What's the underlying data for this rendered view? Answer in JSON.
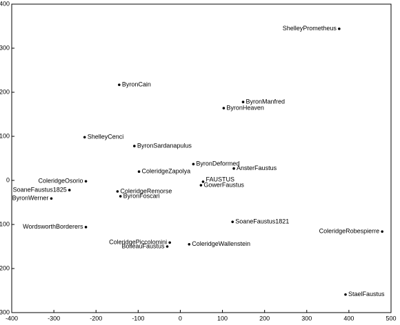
{
  "chart_data": {
    "type": "scatter",
    "color": "#000000",
    "labels": [
      "ShelleyPrometheus",
      "ByronCain",
      "ByronManfred",
      "ByronHeaven",
      "ShelleyCenci",
      "ByronSardanapulus",
      "ByronDeformed",
      "AnsterFaustus",
      "ColeridgeZapolya",
      "FAUSTUS",
      "GowerFaustus",
      "ColeridgeOsorio",
      "SoaneFaustus1825",
      "ColeridgeRemorse",
      "ByronFoscari",
      "ByronWerner",
      "WordsworthBorderers",
      "SoaneFaustus1821",
      "ColeridgeRobespierre",
      "ColeridgePiccolomini",
      "ColeridgeWallenstein",
      "BoileauFaustus",
      "StaelFaustus"
    ],
    "x": [
      377,
      -145,
      149,
      103,
      -227,
      -109,
      31,
      127,
      -98,
      54,
      49,
      -224,
      -263,
      -149,
      -142,
      -306,
      -224,
      124,
      479,
      -25,
      21,
      -31,
      392
    ],
    "values": [
      344,
      217,
      178,
      164,
      98,
      78,
      37,
      27,
      20,
      -3,
      -11,
      -2,
      -22,
      -25,
      -36,
      -41,
      -106,
      -94,
      -116,
      -141,
      -145,
      -150,
      -259
    ],
    "xlim": [
      -400,
      500
    ],
    "ylim": [
      -300,
      400
    ],
    "xticks": [
      -400,
      -300,
      -200,
      -100,
      0,
      100,
      200,
      300,
      400,
      500
    ],
    "yticks": [
      -300,
      -200,
      -100,
      0,
      100,
      200,
      300,
      400
    ]
  }
}
